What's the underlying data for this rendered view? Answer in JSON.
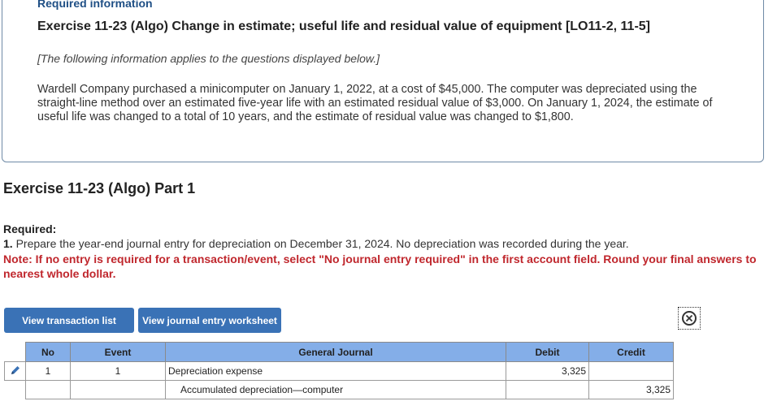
{
  "header": {
    "required_information": "Required information",
    "exercise_title": "Exercise 11-23 (Algo) Change in estimate; useful life and residual value of equipment [LO11-2, 11-5]",
    "applies_note": "[The following information applies to the questions displayed below.]",
    "problem_text": "Wardell Company purchased a minicomputer on January 1, 2022, at a cost of $45,000. The computer was depreciated using the straight-line method over an estimated five-year life with an estimated residual value of $3,000. On January 1, 2024, the estimate of useful life was changed to a total of 10 years, and the estimate of residual value was changed to $1,800."
  },
  "part": {
    "title": "Exercise 11-23 (Algo) Part 1",
    "required_label": "Required:",
    "instruction_number": "1.",
    "instruction_text": "Prepare the year-end journal entry for depreciation on December 31, 2024. No depreciation was recorded during the year.",
    "note": "Note: If no entry is required for a transaction/event, select \"No journal entry required\" in the first account field. Round your final answers to nearest whole dollar."
  },
  "buttons": {
    "view_transaction_list": "View transaction list",
    "view_journal_entry_worksheet": "View journal entry worksheet",
    "close_icon": "close-circle-icon"
  },
  "journal": {
    "columns": {
      "no": "No",
      "event": "Event",
      "general_journal": "General Journal",
      "debit": "Debit",
      "credit": "Credit"
    },
    "rows": [
      {
        "no": "1",
        "event": "1",
        "account": "Depreciation expense",
        "debit": "3,325",
        "credit": ""
      },
      {
        "no": "",
        "event": "",
        "account": "Accumulated depreciation—computer",
        "debit": "",
        "credit": "3,325"
      }
    ]
  },
  "colors": {
    "button_bg": "#3a72b6",
    "table_header_bg": "#84aee8",
    "note_red": "#c0272d",
    "link_blue": "#1f4f85"
  }
}
